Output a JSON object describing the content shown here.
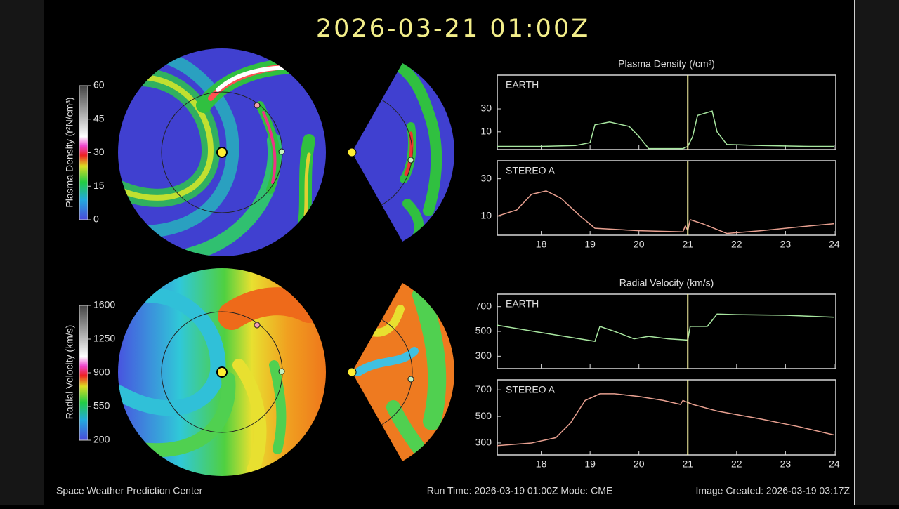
{
  "title": "2026-03-21 01:00Z",
  "footer": {
    "left": "Space Weather Prediction Center",
    "center": "Run Time: 2026-03-19 01:00Z  Mode: CME",
    "right": "Image Created: 2026-03-19 03:17Z"
  },
  "colorbars": [
    {
      "label": "Plasma Density (r²N/cm³)",
      "ticks": [
        0,
        15,
        30,
        45,
        60
      ],
      "range": [
        0,
        60
      ]
    },
    {
      "label": "Radial Velocity (km/s)",
      "ticks": [
        200,
        550,
        900,
        1250,
        1600
      ],
      "range": [
        200,
        1600
      ]
    }
  ],
  "chart_data": [
    {
      "type": "line",
      "title": "Plasma Density (/cm³)",
      "label": "EARTH",
      "color": "#a8e6a0",
      "log": true,
      "x": [
        17.1,
        18.0,
        18.7,
        19.0,
        19.1,
        19.4,
        19.8,
        20.0,
        20.2,
        20.9,
        21.0,
        21.1,
        21.2,
        21.5,
        21.6,
        21.8,
        22.5,
        23.5,
        24.0
      ],
      "values": [
        5,
        5,
        5.2,
        6,
        14,
        16,
        13,
        8,
        4.5,
        4.5,
        5,
        8,
        22,
        27,
        10,
        5.5,
        5.2,
        5,
        5
      ],
      "xlim": [
        17.1,
        24.03
      ],
      "ylim": [
        4.3,
        150
      ],
      "xticks": [
        18,
        19,
        20,
        21,
        22,
        23,
        24
      ],
      "yticks": [
        10,
        30
      ],
      "show_xtick_labels": false,
      "now": 21
    },
    {
      "type": "line",
      "label": "STEREO A",
      "color": "#e8a090",
      "log": true,
      "x": [
        17.1,
        17.5,
        17.8,
        18.1,
        18.4,
        18.8,
        19.1,
        20.0,
        20.9,
        20.95,
        21.0,
        21.05,
        21.3,
        21.8,
        22.5,
        23.5,
        24.0
      ],
      "values": [
        10,
        12,
        19,
        21,
        17,
        10,
        7,
        6.5,
        6.3,
        7.5,
        6.5,
        9,
        8,
        6,
        6.5,
        7.5,
        8
      ],
      "xlim": [
        17.1,
        24.03
      ],
      "ylim": [
        5.7,
        51
      ],
      "xticks": [
        18,
        19,
        20,
        21,
        22,
        23,
        24
      ],
      "yticks": [
        10,
        30
      ],
      "show_xtick_labels": true,
      "now": 21
    },
    {
      "type": "line",
      "title": "Radial Velocity (km/s)",
      "label": "EARTH",
      "color": "#a8e6a0",
      "log": false,
      "x": [
        17.1,
        18.0,
        19.1,
        19.2,
        19.5,
        19.9,
        20.2,
        20.6,
        21.0,
        21.05,
        21.4,
        21.6,
        22.0,
        23.0,
        24.0
      ],
      "values": [
        550,
        490,
        420,
        540,
        500,
        440,
        460,
        440,
        430,
        540,
        540,
        640,
        635,
        630,
        615
      ],
      "xlim": [
        17.1,
        24.03
      ],
      "ylim": [
        200,
        800
      ],
      "xticks": [
        18,
        19,
        20,
        21,
        22,
        23,
        24
      ],
      "yticks": [
        300,
        500,
        700
      ],
      "show_xtick_labels": false,
      "now": 21
    },
    {
      "type": "line",
      "label": "STEREO A",
      "color": "#e8a090",
      "log": false,
      "x": [
        17.1,
        17.8,
        18.3,
        18.6,
        18.9,
        19.2,
        19.5,
        20.0,
        20.5,
        20.85,
        20.9,
        21.1,
        21.6,
        22.5,
        23.3,
        24.0
      ],
      "values": [
        280,
        300,
        340,
        450,
        620,
        670,
        670,
        650,
        620,
        590,
        620,
        590,
        540,
        480,
        420,
        360
      ],
      "xlim": [
        17.1,
        24.03
      ],
      "ylim": [
        210,
        775
      ],
      "xticks": [
        18,
        19,
        20,
        21,
        22,
        23,
        24
      ],
      "yticks": [
        300,
        500,
        700
      ],
      "show_xtick_labels": true,
      "now": 21
    }
  ]
}
